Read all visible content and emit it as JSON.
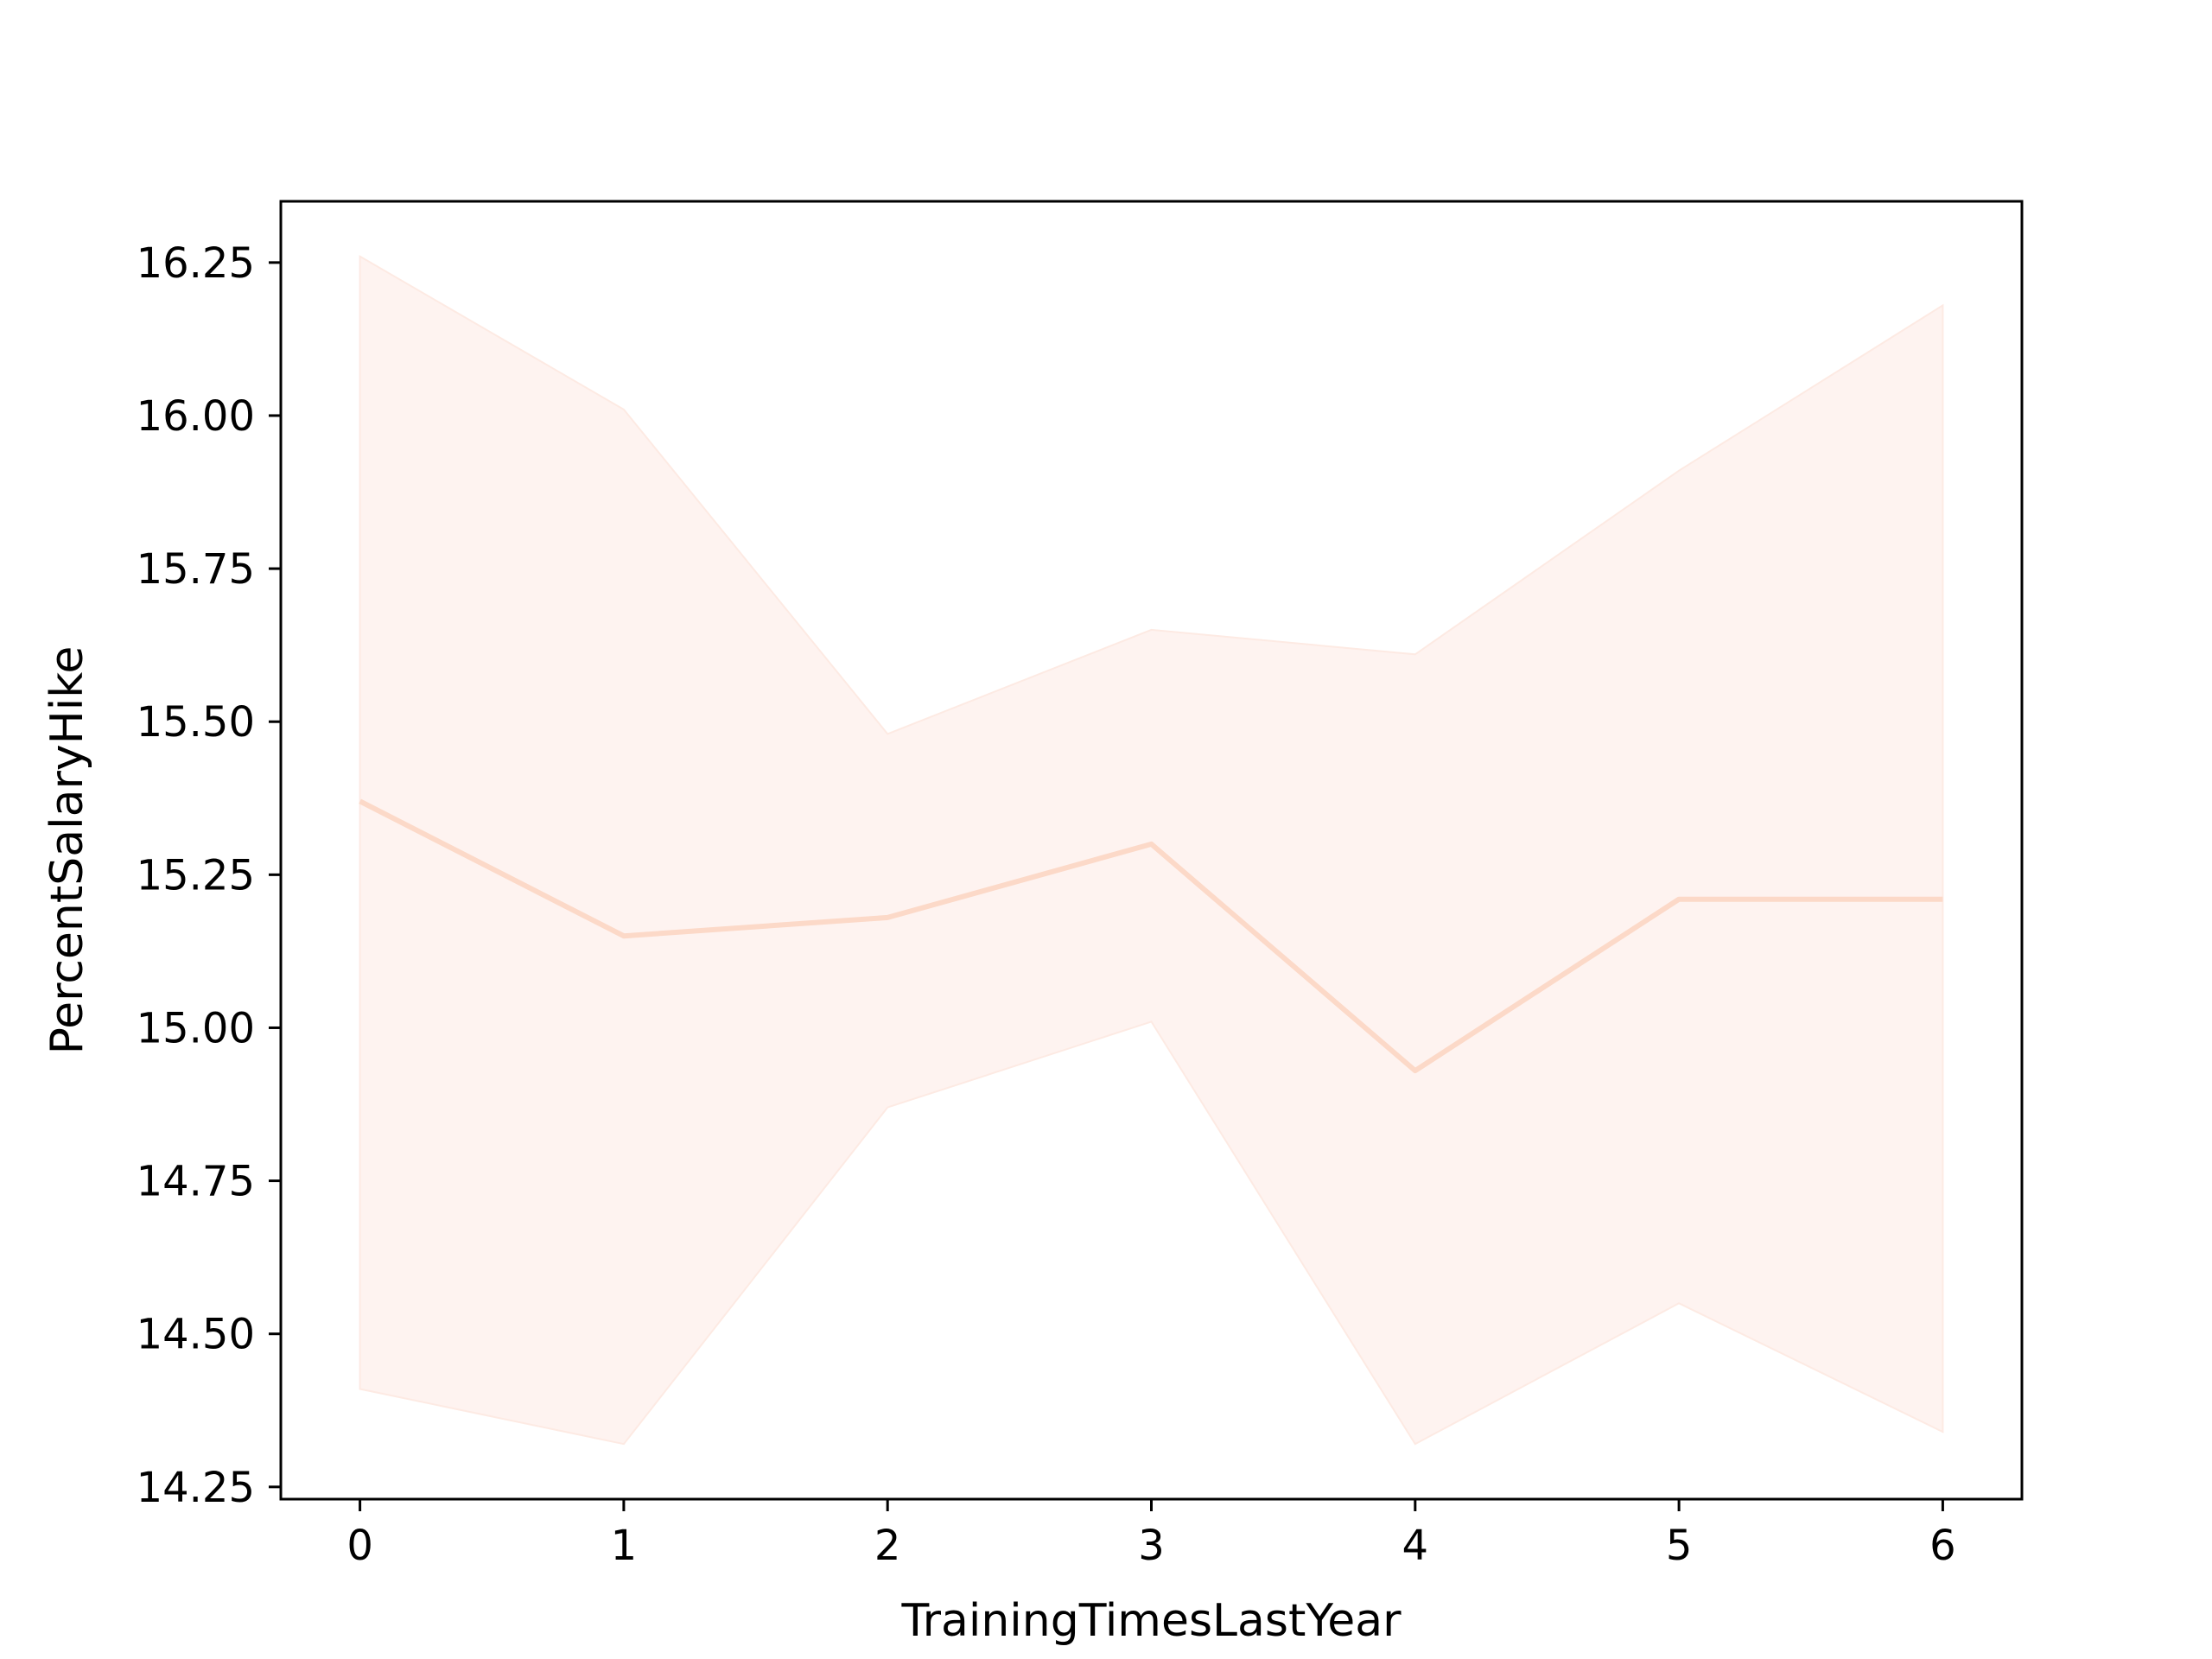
{
  "chart_data": {
    "type": "line",
    "title": "",
    "xlabel": "TrainingTimesLastYear",
    "ylabel": "PercentSalaryHike",
    "xlim": [
      -0.3,
      6.3
    ],
    "ylim": [
      14.23,
      16.35
    ],
    "x_ticks": [
      0,
      1,
      2,
      3,
      4,
      5,
      6
    ],
    "x_tick_labels": [
      "0",
      "1",
      "2",
      "3",
      "4",
      "5",
      "6"
    ],
    "y_ticks": [
      14.25,
      14.5,
      14.75,
      15.0,
      15.25,
      15.5,
      15.75,
      16.0,
      16.25
    ],
    "y_tick_labels": [
      "14.25",
      "14.50",
      "14.75",
      "15.00",
      "15.25",
      "15.50",
      "15.75",
      "16.00",
      "16.25"
    ],
    "grid": false,
    "legend": "none",
    "series": [
      {
        "x": [
          0,
          1,
          2,
          3,
          4,
          5,
          6
        ],
        "y": [
          15.37,
          15.15,
          15.18,
          15.3,
          14.93,
          15.21,
          15.21
        ],
        "ci_lower": [
          14.41,
          14.32,
          14.87,
          15.01,
          14.32,
          14.55,
          14.34
        ],
        "ci_upper": [
          16.26,
          16.01,
          15.48,
          15.65,
          15.61,
          15.91,
          16.18
        ],
        "line_color": "#fcd9c8",
        "band_color": "#fdeae3"
      }
    ]
  }
}
